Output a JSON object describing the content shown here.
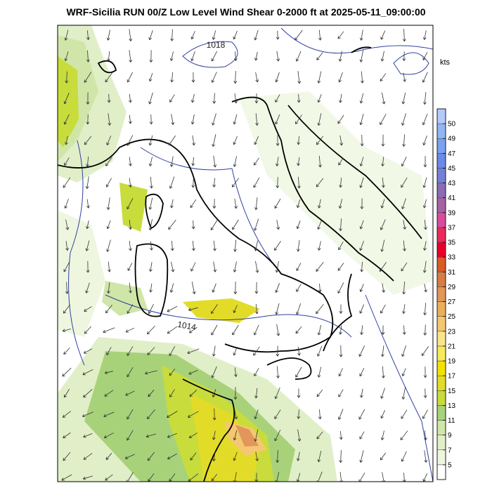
{
  "title": "WRF-Sicilia RUN 00/Z Low Level Wind Shear 0-2000 ft at 2025-05-11_09:00:00",
  "colorbar": {
    "unit": "kts",
    "ticks": [
      5,
      7,
      9,
      11,
      13,
      15,
      17,
      19,
      21,
      23,
      25,
      27,
      29,
      31,
      33,
      35,
      37,
      39,
      41,
      43,
      45,
      47,
      49,
      50
    ],
    "colors": [
      "#ffffff",
      "#eef6e0",
      "#e0efc8",
      "#cfe6a8",
      "#a8d27a",
      "#c8dc3c",
      "#e2dc28",
      "#f2e200",
      "#f6ea5a",
      "#fae48a",
      "#f4c870",
      "#ecae5a",
      "#e2965a",
      "#d87c42",
      "#d85c28",
      "#e8002a",
      "#ea2a5c",
      "#d84c9c",
      "#a462a4",
      "#8a6cb2",
      "#7280d8",
      "#6a8ae8",
      "#7aa2f0",
      "#92b6f4",
      "#b4cafa"
    ]
  },
  "isobars": [
    {
      "label": "1018"
    },
    {
      "label": "1014"
    }
  ]
}
